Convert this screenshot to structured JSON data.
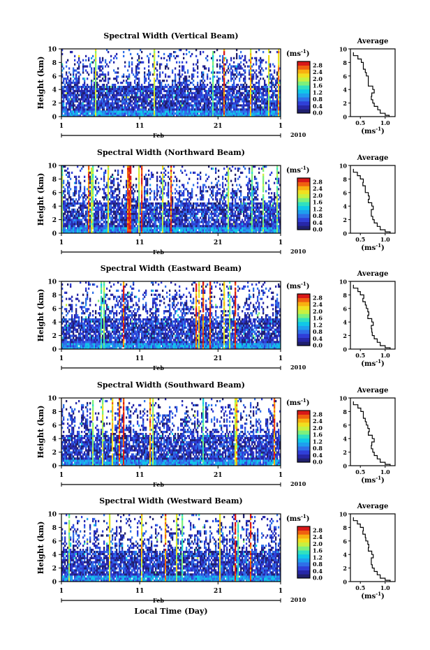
{
  "colors": {
    "colorbar_stops": [
      "#20206e",
      "#2727a8",
      "#2f3fd8",
      "#2f6fe8",
      "#1ea0ee",
      "#10c8e8",
      "#30e0c0",
      "#7cf07c",
      "#c8f040",
      "#f0e020",
      "#f8b010",
      "#f06010",
      "#d81818"
    ],
    "profile_line": "#000000",
    "missing": "#ffffff"
  },
  "shared": {
    "ylabel": "Height (km)",
    "yticks": [
      "0",
      "2",
      "4",
      "6",
      "8",
      "10"
    ],
    "xticks": [
      "1",
      "11",
      "21",
      "1"
    ],
    "month_label": "Feb",
    "year_label": "2010",
    "colorbar_unit_base": "(ms",
    "colorbar_unit_exp": "-1",
    "colorbar_unit_close": ")",
    "colorbar_ticks": [
      "0.0",
      "0.4",
      "0.8",
      "1.2",
      "1.6",
      "2.0",
      "2.4",
      "2.8"
    ],
    "avg_title": "Average",
    "avg_xlabel_base": "(ms",
    "avg_xlabel_exp": "-1",
    "avg_xlabel_close": ")",
    "avg_yticks": [
      "0",
      "2",
      "4",
      "6",
      "8",
      "10"
    ],
    "avg_xticks": [
      "0.5",
      "1.0"
    ],
    "bottom_xlabel": "Local Time (Day)"
  },
  "chart_data": [
    {
      "type": "heatmap",
      "title": "Spectral Width (Vertical Beam)",
      "x_range_days": [
        1,
        29
      ],
      "y_range_km": [
        0,
        10
      ],
      "value_range_ms": [
        0.0,
        2.8
      ],
      "profile": {
        "type": "line",
        "xlim": [
          0.3,
          1.2
        ],
        "points": [
          [
            1.08,
            0.2
          ],
          [
            1.0,
            0.5
          ],
          [
            0.9,
            1.0
          ],
          [
            0.85,
            1.5
          ],
          [
            0.78,
            2.0
          ],
          [
            0.75,
            2.5
          ],
          [
            0.72,
            3.0
          ],
          [
            0.73,
            3.5
          ],
          [
            0.78,
            4.0
          ],
          [
            0.75,
            4.5
          ],
          [
            0.66,
            5.0
          ],
          [
            0.66,
            5.5
          ],
          [
            0.66,
            6.0
          ],
          [
            0.62,
            6.5
          ],
          [
            0.6,
            7.0
          ],
          [
            0.56,
            7.5
          ],
          [
            0.56,
            8.0
          ],
          [
            0.52,
            8.5
          ],
          [
            0.45,
            9.0
          ],
          [
            0.36,
            9.5
          ]
        ]
      }
    },
    {
      "type": "heatmap",
      "title": "Spectral Width (Northward Beam)",
      "x_range_days": [
        1,
        29
      ],
      "y_range_km": [
        0,
        10
      ],
      "value_range_ms": [
        0.0,
        2.8
      ],
      "profile": {
        "type": "line",
        "xlim": [
          0.3,
          1.2
        ],
        "points": [
          [
            1.1,
            0.2
          ],
          [
            1.0,
            0.5
          ],
          [
            0.9,
            1.0
          ],
          [
            0.84,
            1.5
          ],
          [
            0.78,
            2.0
          ],
          [
            0.75,
            2.5
          ],
          [
            0.72,
            3.0
          ],
          [
            0.72,
            3.5
          ],
          [
            0.76,
            4.0
          ],
          [
            0.73,
            4.5
          ],
          [
            0.66,
            5.0
          ],
          [
            0.68,
            5.5
          ],
          [
            0.66,
            6.0
          ],
          [
            0.6,
            6.5
          ],
          [
            0.6,
            7.0
          ],
          [
            0.55,
            7.5
          ],
          [
            0.56,
            8.0
          ],
          [
            0.5,
            8.5
          ],
          [
            0.44,
            9.0
          ],
          [
            0.36,
            9.5
          ]
        ]
      }
    },
    {
      "type": "heatmap",
      "title": "Spectral Width (Eastward Beam)",
      "x_range_days": [
        1,
        29
      ],
      "y_range_km": [
        0,
        10
      ],
      "value_range_ms": [
        0.0,
        2.8
      ],
      "profile": {
        "type": "line",
        "xlim": [
          0.3,
          1.2
        ],
        "points": [
          [
            1.1,
            0.2
          ],
          [
            1.0,
            0.5
          ],
          [
            0.9,
            1.0
          ],
          [
            0.84,
            1.5
          ],
          [
            0.78,
            2.0
          ],
          [
            0.74,
            2.5
          ],
          [
            0.73,
            3.0
          ],
          [
            0.72,
            3.5
          ],
          [
            0.76,
            4.0
          ],
          [
            0.73,
            4.5
          ],
          [
            0.65,
            5.0
          ],
          [
            0.67,
            5.5
          ],
          [
            0.65,
            6.0
          ],
          [
            0.62,
            6.5
          ],
          [
            0.6,
            7.0
          ],
          [
            0.55,
            7.5
          ],
          [
            0.57,
            8.0
          ],
          [
            0.5,
            8.5
          ],
          [
            0.45,
            9.0
          ],
          [
            0.36,
            9.5
          ]
        ]
      }
    },
    {
      "type": "heatmap",
      "title": "Spectral Width (Southward Beam)",
      "x_range_days": [
        1,
        29
      ],
      "y_range_km": [
        0,
        10
      ],
      "value_range_ms": [
        0.0,
        2.8
      ],
      "profile": {
        "type": "line",
        "xlim": [
          0.3,
          1.2
        ],
        "points": [
          [
            1.1,
            0.2
          ],
          [
            1.0,
            0.5
          ],
          [
            0.9,
            1.0
          ],
          [
            0.84,
            1.5
          ],
          [
            0.78,
            2.0
          ],
          [
            0.75,
            2.5
          ],
          [
            0.72,
            3.0
          ],
          [
            0.73,
            3.5
          ],
          [
            0.78,
            4.0
          ],
          [
            0.74,
            4.5
          ],
          [
            0.66,
            5.0
          ],
          [
            0.68,
            5.5
          ],
          [
            0.65,
            6.0
          ],
          [
            0.62,
            6.5
          ],
          [
            0.6,
            7.0
          ],
          [
            0.56,
            7.5
          ],
          [
            0.56,
            8.0
          ],
          [
            0.51,
            8.5
          ],
          [
            0.45,
            9.0
          ],
          [
            0.36,
            9.5
          ]
        ]
      }
    },
    {
      "type": "heatmap",
      "title": "Spectral Width (Westward Beam)",
      "x_range_days": [
        1,
        29
      ],
      "y_range_km": [
        0,
        10
      ],
      "value_range_ms": [
        0.0,
        2.8
      ],
      "profile": {
        "type": "line",
        "xlim": [
          0.3,
          1.2
        ],
        "points": [
          [
            1.1,
            0.2
          ],
          [
            1.0,
            0.5
          ],
          [
            0.9,
            1.0
          ],
          [
            0.84,
            1.5
          ],
          [
            0.78,
            2.0
          ],
          [
            0.74,
            2.5
          ],
          [
            0.72,
            3.0
          ],
          [
            0.72,
            3.5
          ],
          [
            0.76,
            4.0
          ],
          [
            0.73,
            4.5
          ],
          [
            0.66,
            5.0
          ],
          [
            0.67,
            5.5
          ],
          [
            0.65,
            6.0
          ],
          [
            0.61,
            6.5
          ],
          [
            0.6,
            7.0
          ],
          [
            0.55,
            7.5
          ],
          [
            0.56,
            8.0
          ],
          [
            0.5,
            8.5
          ],
          [
            0.44,
            9.0
          ],
          [
            0.36,
            9.5
          ]
        ]
      }
    }
  ]
}
